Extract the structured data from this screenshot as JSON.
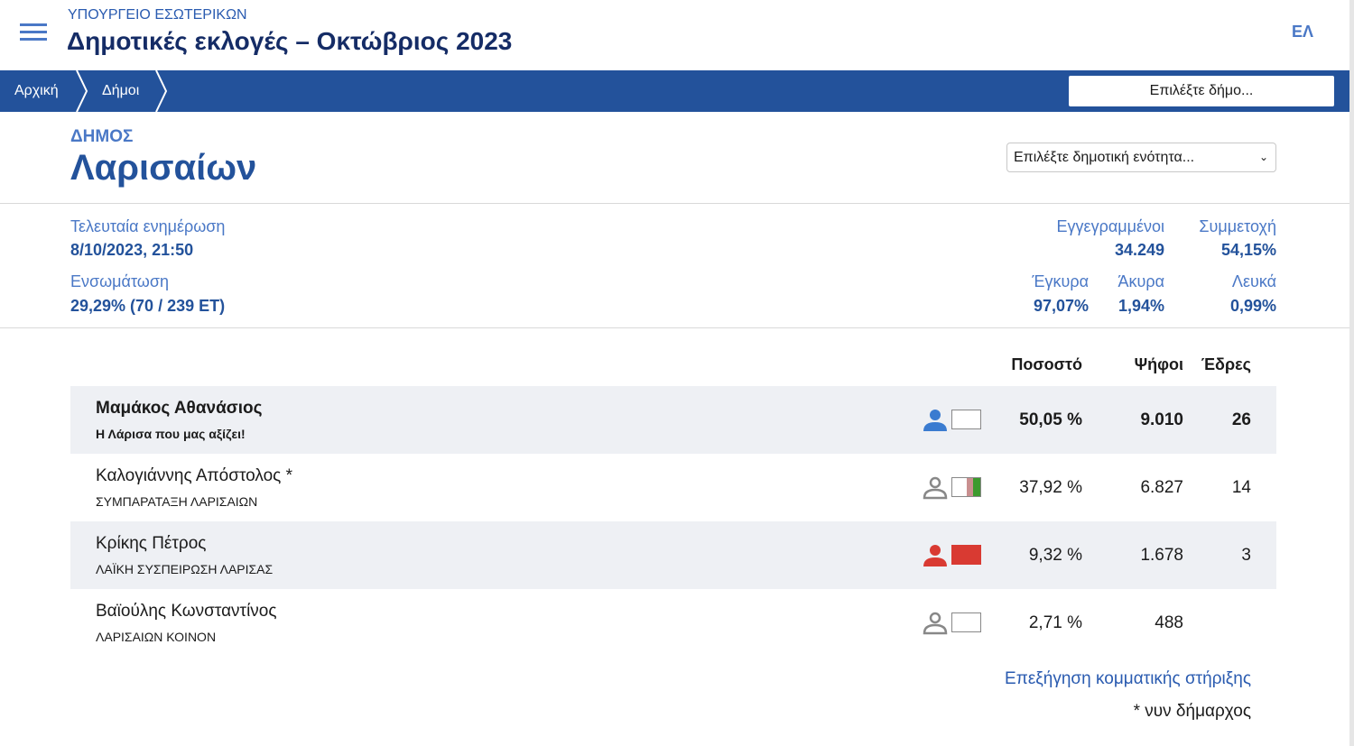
{
  "header": {
    "ministry": "ΥΠΟΥΡΓΕΙΟ ΕΣΩΤΕΡΙΚΩΝ",
    "title": "Δημοτικές εκλογές – Οκτώβριος 2023",
    "lang": "ΕΛ"
  },
  "breadcrumb": [
    "Αρχική",
    "Δήμοι"
  ],
  "select_municipality": "Επιλέξτε δήμο...",
  "municipality": {
    "label": "ΔΗΜΟΣ",
    "name": "Λαρισαίων",
    "unit_select": "Επιλέξτε δημοτική ενότητα..."
  },
  "stats": {
    "updated_label": "Τελευταία ενημέρωση",
    "updated": "8/10/2023, 21:50",
    "incorp_label": "Ενσωμάτωση",
    "incorp": "29,29% (70 / 239 ΕΤ)",
    "registered_label": "Εγγεγραμμένοι",
    "registered": "34.249",
    "turnout_label": "Συμμετοχή",
    "turnout": "54,15%",
    "valid_label": "Έγκυρα",
    "valid": "97,07%",
    "invalid_label": "Άκυρα",
    "invalid": "1,94%",
    "blank_label": "Λευκά",
    "blank": "0,99%"
  },
  "table": {
    "headers": [
      "Ποσοστό",
      "Ψήφοι",
      "Έδρες"
    ],
    "rows": [
      {
        "name": "Μαμάκος Αθανάσιος",
        "party": "Η Λάρισα που μας αξίζει!",
        "pct": "50,05 %",
        "votes": "9.010",
        "seats": "26",
        "icon_color": "#3a7bd0",
        "flag": [
          "#ffffff"
        ]
      },
      {
        "name": "Καλογιάννης Απόστολος *",
        "party": "ΣΥΜΠΑΡΑΤΑΞΗ ΛΑΡΙΣΑΙΩΝ",
        "pct": "37,92 %",
        "votes": "6.827",
        "seats": "14",
        "icon_color": "#888888",
        "flag": [
          "#ffffff",
          "#c98f8f",
          "#3c9a2e"
        ]
      },
      {
        "name": "Κρίκης Πέτρος",
        "party": "ΛΑΪΚΗ ΣΥΣΠΕΙΡΩΣΗ ΛΑΡΙΣΑΣ",
        "pct": "9,32 %",
        "votes": "1.678",
        "seats": "3",
        "icon_color": "#d93a32",
        "flag": [
          "#d93a32"
        ]
      },
      {
        "name": "Βαϊούλης Κωνσταντίνος",
        "party": "ΛΑΡΙΣΑΙΩΝ ΚΟΙΝΟΝ",
        "pct": "2,71 %",
        "votes": "488",
        "seats": "",
        "icon_color": "#888888",
        "flag": [
          "#ffffff"
        ]
      }
    ]
  },
  "footer": {
    "link": "Επεξήγηση κομματικής στήριξης",
    "note": "* νυν δήμαρχος"
  }
}
